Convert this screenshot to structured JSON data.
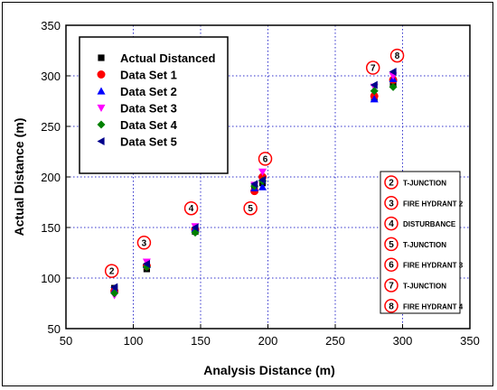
{
  "chart_data": {
    "type": "scatter",
    "xlabel": "Analysis Distance (m)",
    "ylabel": "Actual Distance (m)",
    "xlim": [
      50,
      350
    ],
    "ylim": [
      50,
      350
    ],
    "x_ticks": [
      "50",
      "100",
      "150",
      "200",
      "250",
      "300",
      "350"
    ],
    "y_ticks": [
      "50",
      "100",
      "150",
      "200",
      "250",
      "300",
      "350"
    ],
    "grid": "dotted",
    "legend_position": "top-left",
    "series": [
      {
        "name": "Actual Distanced",
        "color": "#000000",
        "marker": "square",
        "points": [
          [
            86,
            90
          ],
          [
            110,
            109
          ],
          [
            146,
            146
          ],
          [
            190,
            188
          ],
          [
            196,
            194
          ],
          [
            279,
            278
          ],
          [
            293,
            292
          ]
        ]
      },
      {
        "name": "Data Set 1",
        "color": "#ff0000",
        "marker": "circle",
        "points": [
          [
            86,
            87
          ],
          [
            110,
            112
          ],
          [
            146,
            148
          ],
          [
            190,
            186
          ],
          [
            196,
            200
          ],
          [
            279,
            280
          ],
          [
            293,
            296
          ]
        ]
      },
      {
        "name": "Data Set 2",
        "color": "#0000ff",
        "marker": "triangle-up",
        "points": [
          [
            86,
            88
          ],
          [
            110,
            113
          ],
          [
            146,
            149
          ],
          [
            190,
            189
          ],
          [
            196,
            190
          ],
          [
            279,
            277
          ],
          [
            293,
            297
          ]
        ]
      },
      {
        "name": "Data Set 3",
        "color": "#ff00ff",
        "marker": "triangle-down",
        "points": [
          [
            86,
            83
          ],
          [
            110,
            116
          ],
          [
            146,
            151
          ],
          [
            190,
            192
          ],
          [
            196,
            205
          ],
          [
            279,
            289
          ],
          [
            293,
            300
          ]
        ]
      },
      {
        "name": "Data Set 4",
        "color": "#008000",
        "marker": "diamond",
        "points": [
          [
            86,
            85
          ],
          [
            110,
            111
          ],
          [
            146,
            145
          ],
          [
            190,
            191
          ],
          [
            196,
            196
          ],
          [
            279,
            285
          ],
          [
            293,
            289
          ]
        ]
      },
      {
        "name": "Data Set 5",
        "color": "#00008b",
        "marker": "triangle-left",
        "points": [
          [
            86,
            91
          ],
          [
            110,
            114
          ],
          [
            146,
            150
          ],
          [
            190,
            193
          ],
          [
            196,
            197
          ],
          [
            279,
            291
          ],
          [
            293,
            304
          ]
        ]
      }
    ],
    "annotations": [
      {
        "label": "2",
        "x": 84,
        "y": 107
      },
      {
        "label": "3",
        "x": 108,
        "y": 135
      },
      {
        "label": "4",
        "x": 143,
        "y": 169
      },
      {
        "label": "5",
        "x": 187,
        "y": 169
      },
      {
        "label": "6",
        "x": 198,
        "y": 218
      },
      {
        "label": "7",
        "x": 278,
        "y": 308
      },
      {
        "label": "8",
        "x": 296,
        "y": 320
      }
    ],
    "key_box": [
      {
        "number": "2",
        "text": "T-JUNCTION"
      },
      {
        "number": "3",
        "text": "FIRE HYDRANT 2"
      },
      {
        "number": "4",
        "text": "DISTURBANCE"
      },
      {
        "number": "5",
        "text": "T-JUNCTION"
      },
      {
        "number": "6",
        "text": "FIRE HYDRANT 3"
      },
      {
        "number": "7",
        "text": "T-JUNCTION"
      },
      {
        "number": "8",
        "text": "FIRE HYDRANT 4"
      }
    ]
  }
}
